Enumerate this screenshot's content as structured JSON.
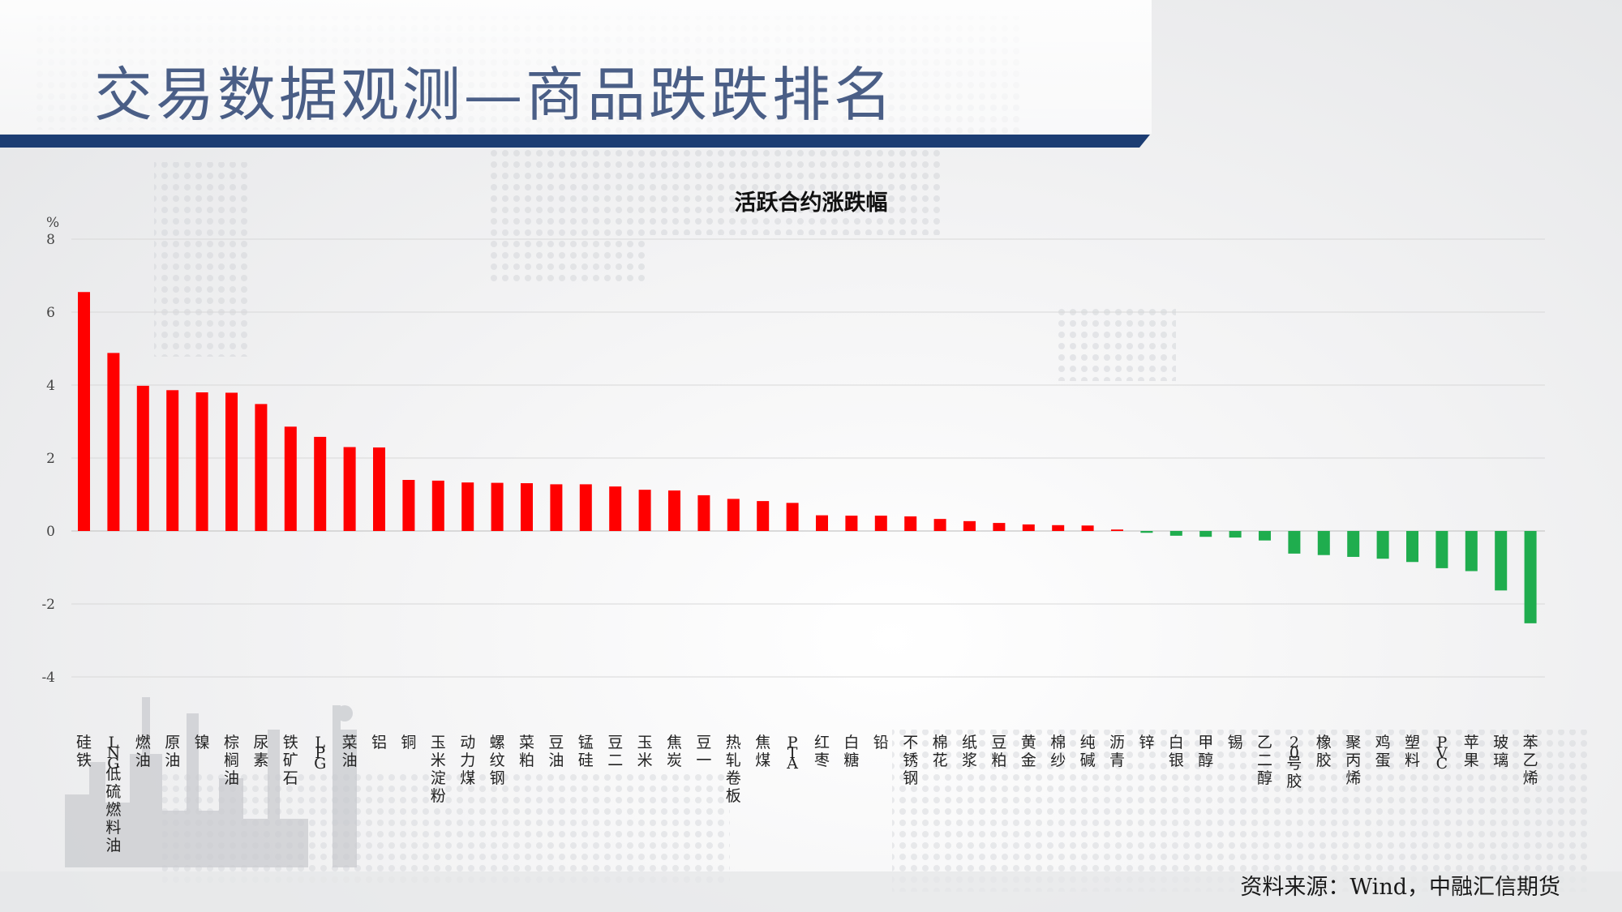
{
  "slide": {
    "title": "交易数据观测—商品跌跌排名",
    "source": "资料来源：Wind，中融汇信期货"
  },
  "colors": {
    "positive": "#ff0000",
    "negative": "#1fad4e",
    "header_bar": "#1c3d73",
    "title": "#4a5e86"
  },
  "chart_data": {
    "type": "bar",
    "title": "活跃合约涨跌幅",
    "ylabel": "%",
    "ylim": [
      -4,
      8
    ],
    "yticks": [
      -4,
      -2,
      0,
      2,
      4,
      6,
      8
    ],
    "ytick_labels": [
      "-4",
      "-2",
      "0",
      "2",
      "4",
      "6",
      "8"
    ],
    "grid": true,
    "categories": [
      "硅铁",
      "LNG低硫燃料油",
      "燃油",
      "原油",
      "镍",
      "棕榈油",
      "尿素",
      "铁矿石",
      "LPG",
      "菜油",
      "铝",
      "铜",
      "玉米淀粉",
      "动力煤",
      "螺纹钢",
      "菜粕",
      "豆油",
      "锰硅",
      "豆二",
      "玉米",
      "焦炭",
      "豆一",
      "热轧卷板",
      "焦煤",
      "PTA",
      "红枣",
      "白糖",
      "铅",
      "不锈钢",
      "棉花",
      "纸浆",
      "豆粕",
      "黄金",
      "棉纱",
      "纯碱",
      "沥青",
      "锌",
      "白银",
      "甲醇",
      "锡",
      "乙二醇",
      "20号胶",
      "橡胶",
      "聚丙烯",
      "鸡蛋",
      "塑料",
      "PVC",
      "苹果",
      "玻璃",
      "苯乙烯"
    ],
    "values": [
      6.55,
      4.88,
      3.98,
      3.86,
      3.8,
      3.79,
      3.48,
      2.86,
      2.58,
      2.3,
      2.29,
      1.4,
      1.38,
      1.33,
      1.32,
      1.31,
      1.28,
      1.28,
      1.22,
      1.13,
      1.11,
      0.98,
      0.88,
      0.82,
      0.77,
      0.43,
      0.42,
      0.42,
      0.4,
      0.33,
      0.27,
      0.22,
      0.18,
      0.16,
      0.15,
      0.04,
      -0.05,
      -0.13,
      -0.16,
      -0.18,
      -0.26,
      -0.62,
      -0.66,
      -0.71,
      -0.76,
      -0.85,
      -1.02,
      -1.1,
      -1.63,
      -2.53
    ]
  }
}
